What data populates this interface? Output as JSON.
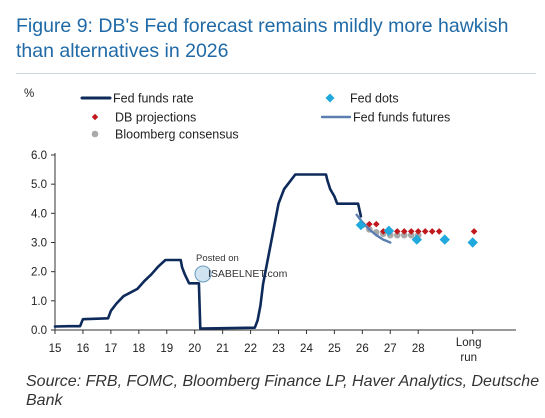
{
  "title": "Figure 9: DB's Fed forecast remains mildly more hawkish than alternatives in 2026",
  "source": "Source: FRB, FOMC, Bloomberg Finance LP, Haver Analytics, Deutsche Bank",
  "watermark": {
    "line1": "Posted on",
    "line2": "ISABELNET.com"
  },
  "colors": {
    "fed_funds_rate": "#0d2a5a",
    "fed_dots": "#20a9dd",
    "db_projections": "#c0181c",
    "bloomberg_consensus": "#a9a9a9",
    "fed_funds_futures": "#5b7fb1"
  },
  "chart_data": {
    "type": "line",
    "title": "Figure 9: DB's Fed forecast remains mildly more hawkish than alternatives in 2026",
    "ylabel": "%",
    "ylim": [
      0,
      6
    ],
    "yticks": [
      "0.0",
      "1.0",
      "2.0",
      "3.0",
      "4.0",
      "5.0",
      "6.0"
    ],
    "xlim": [
      15,
      31.5
    ],
    "xticks": [
      "15",
      "16",
      "17",
      "18",
      "19",
      "20",
      "21",
      "22",
      "23",
      "24",
      "25",
      "26",
      "27",
      "28"
    ],
    "xtick_extra": [
      "Long",
      "run"
    ],
    "grid": false,
    "legend": [
      "Fed funds rate",
      "Fed dots",
      "DB projections",
      "Fed funds futures",
      "Bloomberg consensus"
    ],
    "legend_placement": "top",
    "series": [
      {
        "name": "Fed funds rate",
        "kind": "line",
        "points": [
          [
            15.0,
            0.12
          ],
          [
            15.5,
            0.13
          ],
          [
            15.9,
            0.13
          ],
          [
            16.0,
            0.37
          ],
          [
            16.9,
            0.4
          ],
          [
            17.0,
            0.66
          ],
          [
            17.2,
            0.91
          ],
          [
            17.45,
            1.16
          ],
          [
            17.95,
            1.41
          ],
          [
            18.2,
            1.68
          ],
          [
            18.45,
            1.91
          ],
          [
            18.7,
            2.18
          ],
          [
            18.95,
            2.4
          ],
          [
            19.5,
            2.4
          ],
          [
            19.55,
            2.15
          ],
          [
            19.65,
            1.9
          ],
          [
            19.8,
            1.6
          ],
          [
            20.15,
            1.6
          ],
          [
            20.2,
            0.05
          ],
          [
            22.15,
            0.08
          ],
          [
            22.25,
            0.33
          ],
          [
            22.35,
            0.83
          ],
          [
            22.45,
            1.58
          ],
          [
            22.6,
            2.33
          ],
          [
            22.75,
            3.08
          ],
          [
            22.9,
            3.83
          ],
          [
            23.0,
            4.33
          ],
          [
            23.1,
            4.58
          ],
          [
            23.2,
            4.83
          ],
          [
            23.4,
            5.08
          ],
          [
            23.6,
            5.33
          ],
          [
            24.7,
            5.33
          ],
          [
            24.75,
            5.13
          ],
          [
            24.85,
            4.83
          ],
          [
            25.0,
            4.58
          ],
          [
            25.1,
            4.33
          ],
          [
            25.85,
            4.33
          ],
          [
            25.95,
            3.9
          ]
        ]
      },
      {
        "name": "Fed dots",
        "kind": "marker",
        "points": [
          [
            25.95,
            3.6
          ],
          [
            26.95,
            3.4
          ],
          [
            27.95,
            3.1
          ],
          [
            28.95,
            3.1
          ],
          [
            29.95,
            3.0
          ]
        ]
      },
      {
        "name": "DB projections",
        "kind": "marker",
        "points": [
          [
            26.0,
            3.63
          ],
          [
            26.25,
            3.63
          ],
          [
            26.5,
            3.63
          ],
          [
            26.75,
            3.38
          ],
          [
            27.0,
            3.38
          ],
          [
            27.25,
            3.38
          ],
          [
            27.5,
            3.38
          ],
          [
            27.75,
            3.38
          ],
          [
            28.0,
            3.38
          ],
          [
            28.25,
            3.38
          ],
          [
            28.5,
            3.38
          ],
          [
            28.75,
            3.38
          ],
          [
            30.0,
            3.38
          ]
        ]
      },
      {
        "name": "Bloomberg consensus",
        "kind": "marker",
        "points": [
          [
            26.0,
            3.6
          ],
          [
            26.25,
            3.45
          ],
          [
            26.5,
            3.35
          ],
          [
            26.75,
            3.3
          ],
          [
            27.0,
            3.25
          ],
          [
            27.25,
            3.25
          ],
          [
            27.5,
            3.25
          ],
          [
            27.75,
            3.25
          ],
          [
            28.0,
            3.25
          ]
        ]
      },
      {
        "name": "Fed funds futures",
        "kind": "line",
        "points": [
          [
            25.8,
            3.95
          ],
          [
            26.0,
            3.7
          ],
          [
            26.25,
            3.45
          ],
          [
            26.5,
            3.25
          ],
          [
            26.75,
            3.1
          ],
          [
            27.0,
            3.0
          ]
        ]
      }
    ]
  }
}
